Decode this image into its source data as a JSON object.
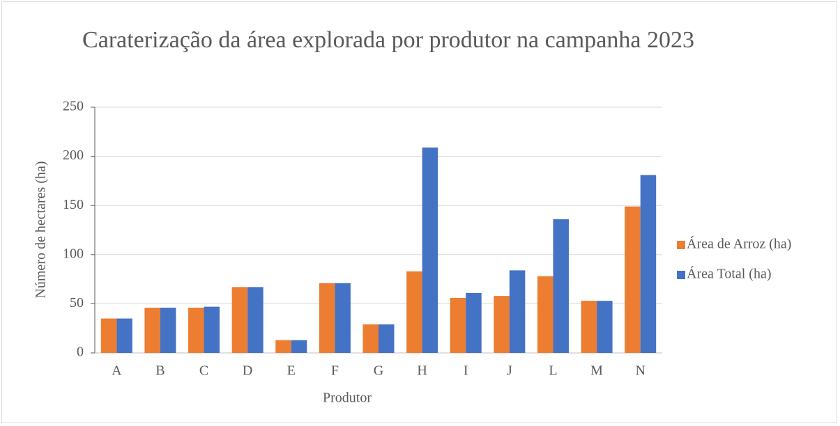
{
  "chart_data": {
    "type": "bar",
    "title": "Caraterização da área explorada por produtor na campanha 2023",
    "x_label": "Produtor",
    "y_label": "Número de hectares (ha)",
    "categories": [
      "A",
      "B",
      "C",
      "D",
      "E",
      "F",
      "G",
      "H",
      "I",
      "J",
      "L",
      "M",
      "N"
    ],
    "series": [
      {
        "name": "Área de Arroz (ha)",
        "color": "#ed7d31",
        "values": [
          35,
          46,
          46,
          67,
          13,
          71,
          29,
          83,
          56,
          58,
          78,
          53,
          149
        ]
      },
      {
        "name": "Área Total (ha)",
        "color": "#4472c4",
        "values": [
          35,
          46,
          47,
          67,
          13,
          71,
          29,
          209,
          61,
          84,
          136,
          53,
          181
        ]
      }
    ],
    "ylim": [
      0,
      250
    ],
    "yticks": [
      0,
      50,
      100,
      150,
      200,
      250
    ],
    "grid": true,
    "legend": "right"
  }
}
